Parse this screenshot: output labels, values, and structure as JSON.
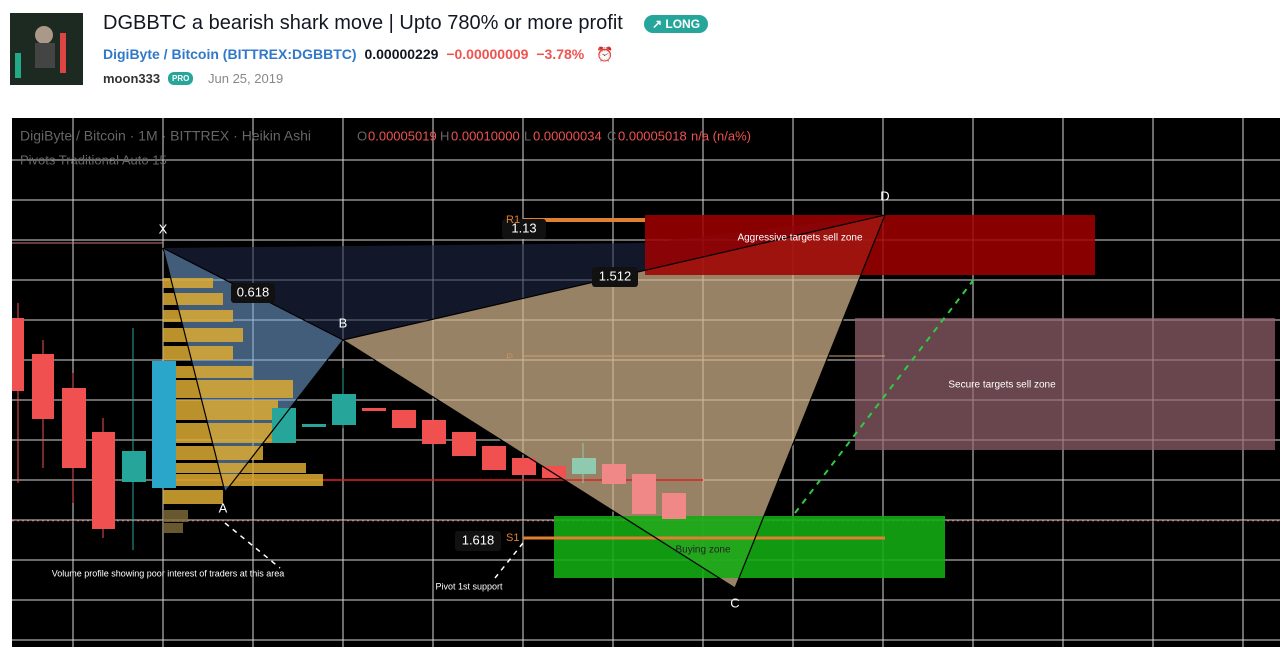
{
  "header": {
    "title": "DGBBTC a bearish shark move | Upto 780% or more profit",
    "badge": "LONG",
    "symbol_name": "DigiByte / Bitcoin",
    "symbol_code": "(BITTREX:DGBBTC)",
    "price": "0.00000229",
    "change": "−0.00000009",
    "change_pct": "−3.78%",
    "author": "moon333",
    "author_badge": "PRO",
    "date": "Jun 25, 2019"
  },
  "chart": {
    "legend": {
      "series": "DigiByte / Bitcoin · 1M · BITTREX · Heikin Ashi",
      "o_label": "O",
      "o": "0.00005019",
      "h_label": "H",
      "h": "0.00010000",
      "l_label": "L",
      "l": "0.00000034",
      "c_label": "C",
      "c": "0.00005018",
      "change": "n/a (n/a%)",
      "indicator": "Pivots Traditional Auto 15"
    },
    "points": {
      "x": "X",
      "a": "A",
      "b": "B",
      "c": "C",
      "d": "D"
    },
    "ratios": {
      "xb": "0.618",
      "bd": "1.13",
      "ac": "1.512",
      "bc": "1.618"
    },
    "pivots": {
      "r1": "R1",
      "p": "P",
      "s1": "S1"
    },
    "zones": {
      "aggressive": "Aggressive targets sell zone",
      "secure": "Secure targets sell zone",
      "buying": "Buying zone"
    },
    "notes": {
      "volume": "Volume profile showing poor interest of traders at this area",
      "pivot": "Pivot 1st support"
    }
  }
}
